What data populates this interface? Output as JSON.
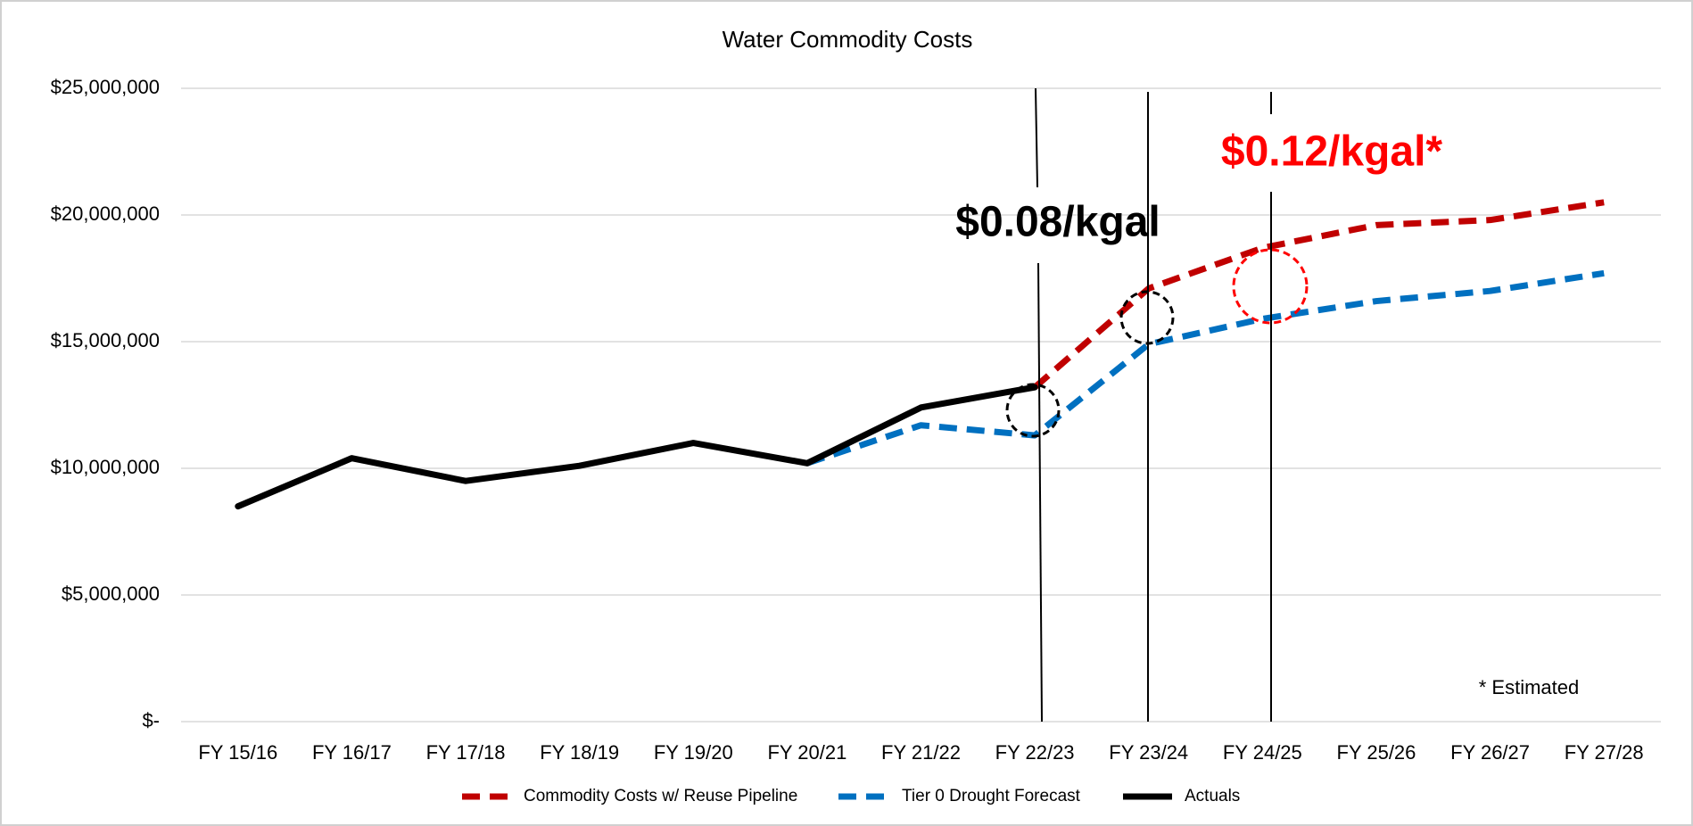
{
  "chart_data": {
    "type": "line",
    "title": "Water Commodity Costs",
    "categories": [
      "FY 15/16",
      "FY 16/17",
      "FY 17/18",
      "FY 18/19",
      "FY 19/20",
      "FY 20/21",
      "FY 21/22",
      "FY 22/23",
      "FY 23/24",
      "FY 24/25",
      "FY 25/26",
      "FY 26/27",
      "FY 27/28"
    ],
    "series": [
      {
        "name": "Commodity Costs w/ Reuse Pipeline",
        "color": "#c00000",
        "dashed": true,
        "values": [
          null,
          null,
          null,
          null,
          null,
          null,
          null,
          13200000,
          17100000,
          18700000,
          19600000,
          19800000,
          20500000
        ]
      },
      {
        "name": "Tier 0 Drought Forecast",
        "color": "#0070c0",
        "dashed": true,
        "values": [
          null,
          null,
          null,
          null,
          null,
          10200000,
          11700000,
          11300000,
          14900000,
          15900000,
          16600000,
          17000000,
          17700000
        ]
      },
      {
        "name": "Actuals",
        "color": "#000000",
        "dashed": false,
        "values": [
          8500000,
          10400000,
          9500000,
          10100000,
          11000000,
          10200000,
          12400000,
          13200000,
          null,
          null,
          null,
          null,
          null
        ]
      }
    ],
    "ylim": [
      0,
      25000000
    ],
    "yticks": [
      {
        "value": 0,
        "label": "$-"
      },
      {
        "value": 5000000,
        "label": "$5,000,000"
      },
      {
        "value": 10000000,
        "label": "$10,000,000"
      },
      {
        "value": 15000000,
        "label": "$15,000,000"
      },
      {
        "value": 20000000,
        "label": "$20,000,000"
      },
      {
        "value": 25000000,
        "label": "$25,000,000"
      }
    ],
    "grid": true,
    "legend": "bottom",
    "annotations": [
      "$0.08/kgal",
      "$0.12/kgal*",
      "* Estimated"
    ]
  }
}
